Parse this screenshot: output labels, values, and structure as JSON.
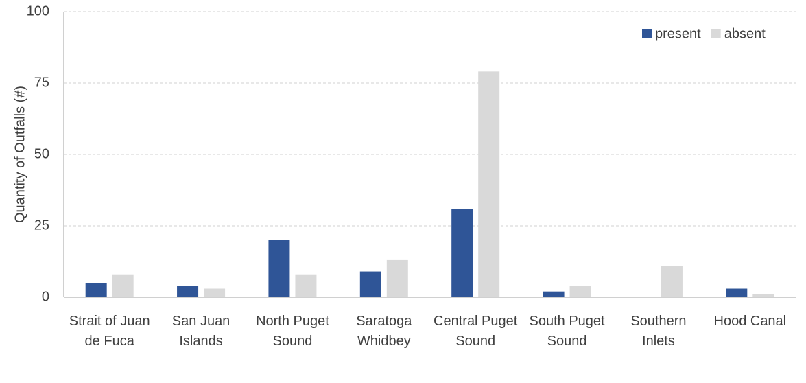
{
  "chart_data": {
    "type": "bar",
    "y_label": "Quantity of Outfalls (#)",
    "categories": [
      "Strait of Juan de Fuca",
      "San Juan Islands",
      "North Puget Sound",
      "Saratoga Whidbey",
      "Central Puget Sound",
      "South Puget Sound",
      "Southern Inlets",
      "Hood Canal"
    ],
    "series": [
      {
        "name": "present",
        "color": "#2f5597",
        "values": [
          5,
          4,
          20,
          9,
          31,
          2,
          0,
          3
        ]
      },
      {
        "name": "absent",
        "color": "#d9d9d9",
        "values": [
          8,
          3,
          8,
          13,
          79,
          4,
          11,
          1
        ]
      }
    ],
    "ylim": [
      0,
      100
    ],
    "yticks": [
      0,
      25,
      50,
      75,
      100
    ],
    "grid": true,
    "legend": "top-right"
  }
}
